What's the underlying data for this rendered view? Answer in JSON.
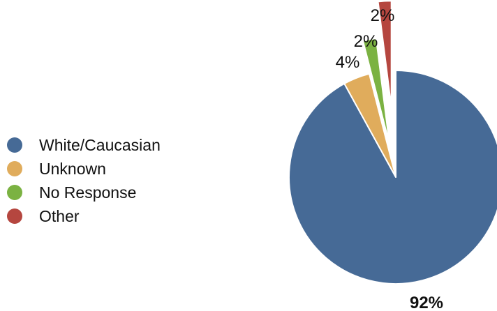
{
  "chart_data": {
    "type": "pie",
    "categories": [
      "White/Caucasian",
      "Unknown",
      "No Response",
      "Other"
    ],
    "values": [
      92,
      4,
      2,
      2
    ],
    "labels": [
      "92%",
      "4%",
      "2%",
      "2%"
    ],
    "colors": [
      "#466a96",
      "#e0ac5c",
      "#7bb242",
      "#b5463f"
    ],
    "legend": "left"
  }
}
